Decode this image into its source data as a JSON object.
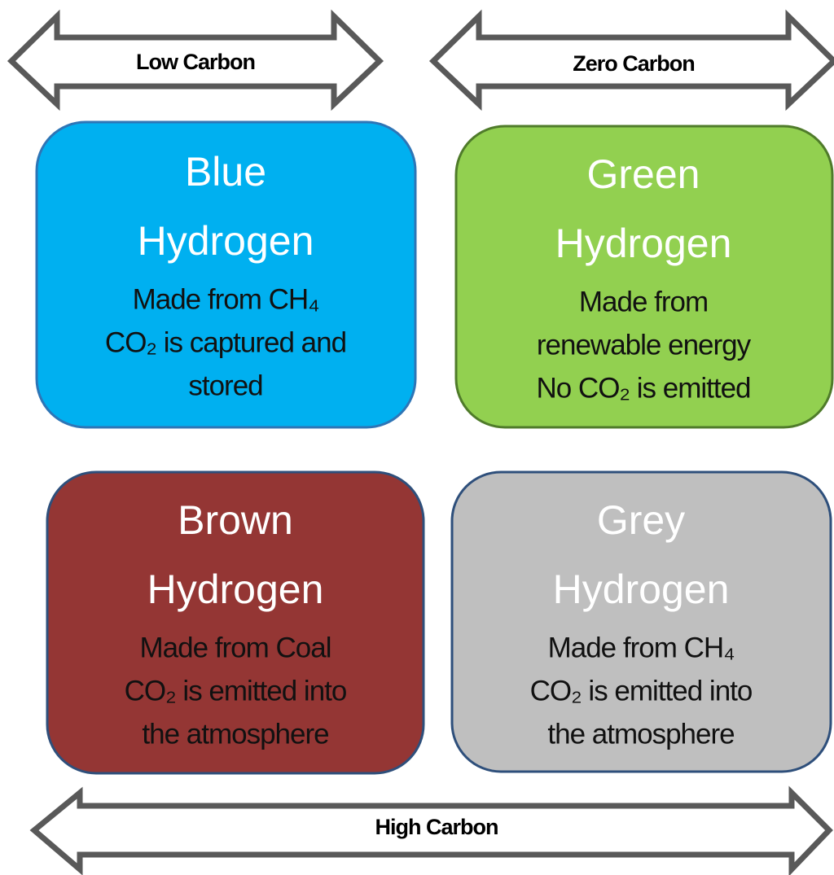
{
  "arrows": [
    {
      "label": "Low Carbon"
    },
    {
      "label": "Zero Carbon"
    },
    {
      "label": "High Carbon"
    }
  ],
  "boxes": [
    {
      "title": [
        "Blue",
        "Hydrogen"
      ],
      "lines": [
        "Made from CH₄",
        "CO₂ is captured and",
        "stored"
      ]
    },
    {
      "title": [
        "Green",
        "Hydrogen"
      ],
      "lines": [
        "Made from",
        "renewable energy",
        "No CO₂ is emitted"
      ]
    },
    {
      "title": [
        "Brown",
        "Hydrogen"
      ],
      "lines": [
        "Made from Coal",
        "CO₂ is emitted into",
        "the atmosphere"
      ]
    },
    {
      "title": [
        "Grey",
        "Hydrogen"
      ],
      "lines": [
        "Made from CH₄",
        "CO₂ is emitted into",
        "the atmosphere"
      ]
    }
  ]
}
